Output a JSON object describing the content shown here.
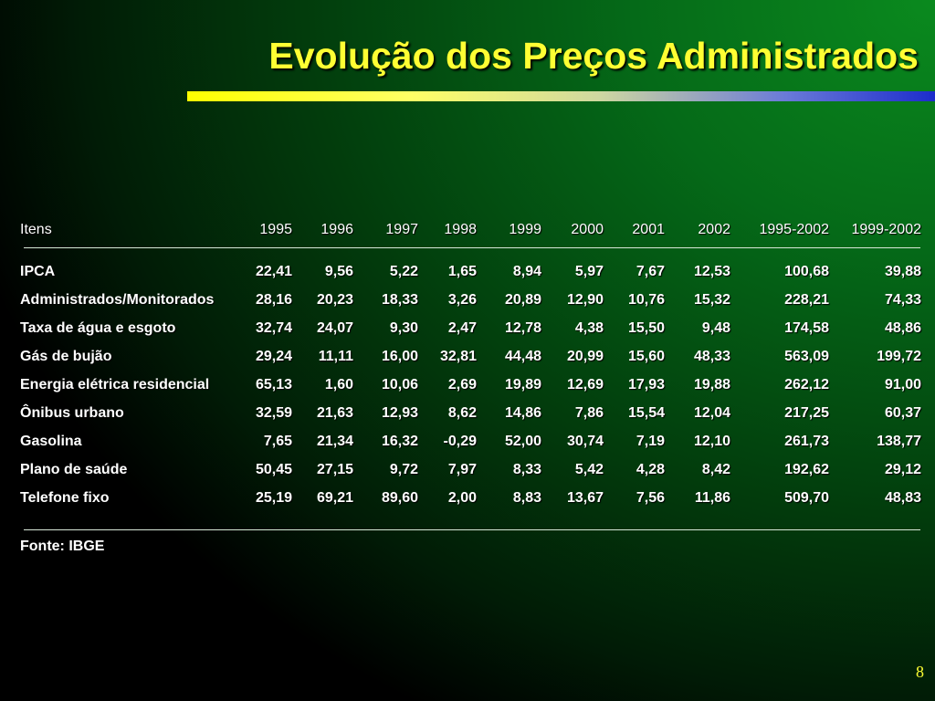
{
  "slide": {
    "title": "Evolução dos Preços Administrados",
    "source": "Fonte: IBGE",
    "page_number": "8"
  },
  "table": {
    "headers": [
      "Itens",
      "1995",
      "1996",
      "1997",
      "1998",
      "1999",
      "2000",
      "2001",
      "2002",
      "1995-2002",
      "1999-2002"
    ],
    "rows": [
      {
        "item": "IPCA",
        "values": [
          "22,41",
          "9,56",
          "5,22",
          "1,65",
          "8,94",
          "5,97",
          "7,67",
          "12,53",
          "100,68",
          "39,88"
        ]
      },
      {
        "item": "Administrados/Monitorados",
        "values": [
          "28,16",
          "20,23",
          "18,33",
          "3,26",
          "20,89",
          "12,90",
          "10,76",
          "15,32",
          "228,21",
          "74,33"
        ]
      },
      {
        "item": "Taxa de água e esgoto",
        "values": [
          "32,74",
          "24,07",
          "9,30",
          "2,47",
          "12,78",
          "4,38",
          "15,50",
          "9,48",
          "174,58",
          "48,86"
        ]
      },
      {
        "item": "Gás de bujão",
        "values": [
          "29,24",
          "11,11",
          "16,00",
          "32,81",
          "44,48",
          "20,99",
          "15,60",
          "48,33",
          "563,09",
          "199,72"
        ]
      },
      {
        "item": "Energia elétrica residencial",
        "values": [
          "65,13",
          "1,60",
          "10,06",
          "2,69",
          "19,89",
          "12,69",
          "17,93",
          "19,88",
          "262,12",
          "91,00"
        ]
      },
      {
        "item": "Ônibus urbano",
        "values": [
          "32,59",
          "21,63",
          "12,93",
          "8,62",
          "14,86",
          "7,86",
          "15,54",
          "12,04",
          "217,25",
          "60,37"
        ]
      },
      {
        "item": "Gasolina",
        "values": [
          "7,65",
          "21,34",
          "16,32",
          "-0,29",
          "52,00",
          "30,74",
          "7,19",
          "12,10",
          "261,73",
          "138,77"
        ]
      },
      {
        "item": "Plano de saúde",
        "values": [
          "50,45",
          "27,15",
          "9,72",
          "7,97",
          "8,33",
          "5,42",
          "4,28",
          "8,42",
          "192,62",
          "29,12"
        ]
      },
      {
        "item": "Telefone fixo",
        "values": [
          "25,19",
          "69,21",
          "89,60",
          "2,00",
          "8,83",
          "13,67",
          "7,56",
          "11,86",
          "509,70",
          "48,83"
        ]
      }
    ]
  }
}
